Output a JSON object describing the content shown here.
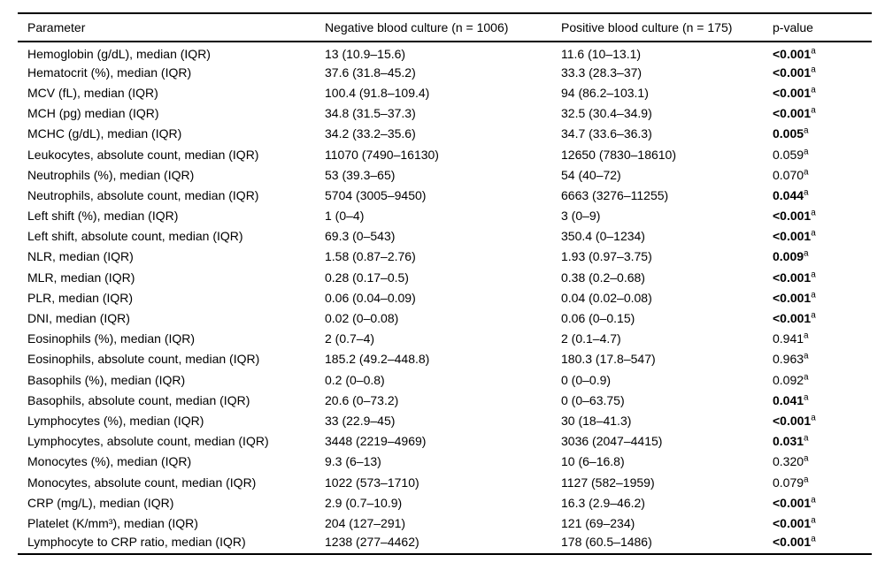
{
  "table": {
    "columns": [
      "Parameter",
      "Negative blood culture (n = 1006)",
      "Positive blood culture (n = 175)",
      "p-value"
    ],
    "rows": [
      {
        "parameter": "Hemoglobin (g/dL), median (IQR)",
        "negative": "13 (10.9–15.6)",
        "positive": "11.6 (10–13.1)",
        "p_value": "<0.001",
        "p_sup": "a",
        "significant": true
      },
      {
        "parameter": "Hematocrit (%), median (IQR)",
        "negative": "37.6 (31.8–45.2)",
        "positive": "33.3 (28.3–37)",
        "p_value": "<0.001",
        "p_sup": "a",
        "significant": true
      },
      {
        "parameter": "MCV (fL), median (IQR)",
        "negative": "100.4 (91.8–109.4)",
        "positive": "94 (86.2–103.1)",
        "p_value": "<0.001",
        "p_sup": "a",
        "significant": true
      },
      {
        "parameter": "MCH (pg) median (IQR)",
        "negative": "34.8 (31.5–37.3)",
        "positive": "32.5 (30.4–34.9)",
        "p_value": "<0.001",
        "p_sup": "a",
        "significant": true
      },
      {
        "parameter": "MCHC (g/dL), median (IQR)",
        "negative": "34.2 (33.2–35.6)",
        "positive": "34.7 (33.6–36.3)",
        "p_value": "0.005",
        "p_sup": "a",
        "significant": true
      },
      {
        "parameter": "Leukocytes, absolute count, median (IQR)",
        "negative": "11070 (7490–16130)",
        "positive": "12650 (7830–18610)",
        "p_value": "0.059",
        "p_sup": "a",
        "significant": false
      },
      {
        "parameter": "Neutrophils (%), median (IQR)",
        "negative": "53 (39.3–65)",
        "positive": "54 (40–72)",
        "p_value": "0.070",
        "p_sup": "a",
        "significant": false
      },
      {
        "parameter": "Neutrophils, absolute count, median (IQR)",
        "negative": "5704 (3005–9450)",
        "positive": "6663 (3276–11255)",
        "p_value": "0.044",
        "p_sup": "a",
        "significant": true
      },
      {
        "parameter": "Left shift (%), median (IQR)",
        "negative": "1 (0–4)",
        "positive": "3 (0–9)",
        "p_value": "<0.001",
        "p_sup": "a",
        "significant": true
      },
      {
        "parameter": "Left shift, absolute count, median (IQR)",
        "negative": "69.3 (0–543)",
        "positive": "350.4 (0–1234)",
        "p_value": "<0.001",
        "p_sup": "a",
        "significant": true
      },
      {
        "parameter": "NLR, median (IQR)",
        "negative": "1.58 (0.87–2.76)",
        "positive": "1.93 (0.97–3.75)",
        "p_value": "0.009",
        "p_sup": "a",
        "significant": true
      },
      {
        "parameter": "MLR, median (IQR)",
        "negative": "0.28 (0.17–0.5)",
        "positive": "0.38 (0.2–0.68)",
        "p_value": "<0.001",
        "p_sup": "a",
        "significant": true
      },
      {
        "parameter": "PLR, median (IQR)",
        "negative": "0.06 (0.04–0.09)",
        "positive": "0.04 (0.02–0.08)",
        "p_value": "<0.001",
        "p_sup": "a",
        "significant": true
      },
      {
        "parameter": "DNI, median (IQR)",
        "negative": "0.02 (0–0.08)",
        "positive": "0.06 (0–0.15)",
        "p_value": "<0.001",
        "p_sup": "a",
        "significant": true
      },
      {
        "parameter": "Eosinophils (%), median (IQR)",
        "negative": "2 (0.7–4)",
        "positive": "2 (0.1–4.7)",
        "p_value": "0.941",
        "p_sup": "a",
        "significant": false
      },
      {
        "parameter": "Eosinophils, absolute count, median (IQR)",
        "negative": "185.2 (49.2–448.8)",
        "positive": "180.3 (17.8–547)",
        "p_value": "0.963",
        "p_sup": "a",
        "significant": false
      },
      {
        "parameter": "Basophils (%), median (IQR)",
        "negative": "0.2 (0–0.8)",
        "positive": "0 (0–0.9)",
        "p_value": "0.092",
        "p_sup": "a",
        "significant": false
      },
      {
        "parameter": "Basophils, absolute count, median (IQR)",
        "negative": "20.6 (0–73.2)",
        "positive": "0 (0–63.75)",
        "p_value": "0.041",
        "p_sup": "a",
        "significant": true
      },
      {
        "parameter": "Lymphocytes (%), median (IQR)",
        "negative": "33 (22.9–45)",
        "positive": "30 (18–41.3)",
        "p_value": "<0.001",
        "p_sup": "a",
        "significant": true
      },
      {
        "parameter": "Lymphocytes, absolute count, median (IQR)",
        "negative": "3448 (2219–4969)",
        "positive": "3036 (2047–4415)",
        "p_value": "0.031",
        "p_sup": "a",
        "significant": true
      },
      {
        "parameter": "Monocytes (%), median (IQR)",
        "negative": "9.3 (6–13)",
        "positive": "10 (6–16.8)",
        "p_value": "0.320",
        "p_sup": "a",
        "significant": false
      },
      {
        "parameter": "Monocytes, absolute count, median (IQR)",
        "negative": "1022 (573–1710)",
        "positive": "1127 (582–1959)",
        "p_value": "0.079",
        "p_sup": "a",
        "significant": false
      },
      {
        "parameter": "CRP (mg/L), median (IQR)",
        "negative": "2.9 (0.7–10.9)",
        "positive": "16.3 (2.9–46.2)",
        "p_value": "<0.001",
        "p_sup": "a",
        "significant": true
      },
      {
        "parameter": "Platelet (K/mm³), median (IQR)",
        "negative": "204 (127–291)",
        "positive": "121 (69–234)",
        "p_value": "<0.001",
        "p_sup": "a",
        "significant": true
      },
      {
        "parameter": "Lymphocyte to CRP ratio, median (IQR)",
        "negative": "1238 (277–4462)",
        "positive": "178 (60.5–1486)",
        "p_value": "<0.001",
        "p_sup": "a",
        "significant": true
      }
    ]
  }
}
